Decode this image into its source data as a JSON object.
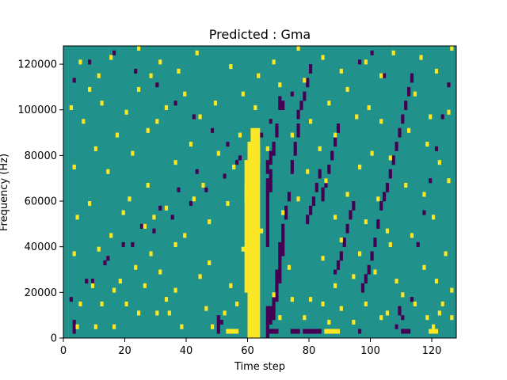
{
  "chart_data": {
    "type": "heatmap",
    "title": "Predicted : Gma",
    "xlabel": "Time step",
    "ylabel": "Frequency (Hz)",
    "xlim": [
      0,
      128
    ],
    "ylim": [
      0,
      128000
    ],
    "x_ticks": [
      0,
      20,
      40,
      60,
      80,
      100,
      120
    ],
    "x_tick_labels": [
      "0",
      "20",
      "40",
      "60",
      "80",
      "100",
      "120"
    ],
    "y_ticks": [
      0,
      20000,
      40000,
      60000,
      80000,
      100000,
      120000
    ],
    "y_tick_labels": [
      "0",
      "20000",
      "40000",
      "60000",
      "80000",
      "100000",
      "120000"
    ],
    "rows": 64,
    "cols": 128,
    "colormap": "viridis",
    "colors": {
      "low": "#440154",
      "mid": "#21918c",
      "high": "#fde725"
    },
    "grid": false,
    "background_value": 0,
    "high_cells": [
      [
        60,
        0,
        42
      ],
      [
        61,
        0,
        42
      ],
      [
        62,
        0,
        42
      ],
      [
        63,
        0,
        45
      ],
      [
        59,
        10,
        38
      ],
      [
        61,
        43,
        45
      ],
      [
        62,
        43,
        45
      ],
      [
        60,
        20,
        30
      ],
      [
        59,
        30,
        32
      ],
      [
        53,
        1,
        1
      ],
      [
        54,
        1,
        1
      ],
      [
        55,
        1,
        1
      ],
      [
        56,
        1,
        1
      ],
      [
        85,
        1,
        1
      ],
      [
        86,
        1,
        1
      ],
      [
        87,
        1,
        1
      ],
      [
        88,
        1,
        1
      ],
      [
        89,
        1,
        1
      ],
      [
        119,
        1,
        1
      ],
      [
        120,
        1,
        1
      ],
      [
        121,
        1,
        1
      ],
      [
        120,
        2,
        2
      ],
      [
        4,
        2,
        2
      ],
      [
        10,
        2,
        2
      ],
      [
        16,
        2,
        2
      ],
      [
        38,
        2,
        2
      ],
      [
        48,
        2,
        2
      ],
      [
        86,
        3,
        3
      ],
      [
        94,
        3,
        3
      ],
      [
        70,
        4,
        4
      ],
      [
        78,
        4,
        4
      ],
      [
        103,
        4,
        4
      ],
      [
        105,
        5,
        5
      ],
      [
        118,
        4,
        4
      ],
      [
        122,
        5,
        5
      ],
      [
        126,
        4,
        4
      ],
      [
        24,
        5,
        5
      ],
      [
        30,
        5,
        5
      ],
      [
        34,
        5,
        5
      ],
      [
        46,
        6,
        6
      ],
      [
        52,
        5,
        5
      ],
      [
        5,
        7,
        7
      ],
      [
        12,
        7,
        7
      ],
      [
        20,
        7,
        7
      ],
      [
        33,
        8,
        8
      ],
      [
        56,
        7,
        7
      ],
      [
        74,
        8,
        8
      ],
      [
        84,
        7,
        7
      ],
      [
        90,
        6,
        6
      ],
      [
        98,
        7,
        7
      ],
      [
        114,
        7,
        7
      ],
      [
        123,
        7,
        7
      ],
      [
        16,
        10,
        10
      ],
      [
        36,
        10,
        10
      ],
      [
        68,
        9,
        9
      ],
      [
        80,
        8,
        8
      ],
      [
        110,
        9,
        9
      ],
      [
        126,
        10,
        10
      ],
      [
        9,
        11,
        11
      ],
      [
        18,
        12,
        12
      ],
      [
        26,
        11,
        11
      ],
      [
        44,
        13,
        13
      ],
      [
        54,
        11,
        11
      ],
      [
        88,
        11,
        11
      ],
      [
        94,
        13,
        13
      ],
      [
        108,
        12,
        12
      ],
      [
        121,
        12,
        12
      ],
      [
        23,
        15,
        15
      ],
      [
        31,
        14,
        14
      ],
      [
        47,
        16,
        16
      ],
      [
        73,
        15,
        15
      ],
      [
        101,
        14,
        14
      ],
      [
        117,
        15,
        15
      ],
      [
        3,
        18,
        18
      ],
      [
        11,
        19,
        19
      ],
      [
        28,
        18,
        18
      ],
      [
        36,
        20,
        20
      ],
      [
        58,
        19,
        19
      ],
      [
        84,
        17,
        17
      ],
      [
        96,
        18,
        18
      ],
      [
        106,
        20,
        20
      ],
      [
        124,
        18,
        18
      ],
      [
        15,
        22,
        22
      ],
      [
        26,
        24,
        24
      ],
      [
        39,
        22,
        22
      ],
      [
        64,
        23,
        23
      ],
      [
        90,
        21,
        21
      ],
      [
        105,
        23,
        23
      ],
      [
        113,
        22,
        22
      ],
      [
        4,
        26,
        26
      ],
      [
        19,
        27,
        27
      ],
      [
        29,
        26,
        26
      ],
      [
        47,
        25,
        25
      ],
      [
        71,
        27,
        27
      ],
      [
        88,
        26,
        26
      ],
      [
        98,
        25,
        25
      ],
      [
        120,
        26,
        26
      ],
      [
        8,
        29,
        29
      ],
      [
        21,
        30,
        30
      ],
      [
        33,
        28,
        28
      ],
      [
        42,
        30,
        30
      ],
      [
        53,
        29,
        29
      ],
      [
        76,
        30,
        30
      ],
      [
        92,
        31,
        31
      ],
      [
        102,
        30,
        30
      ],
      [
        117,
        31,
        31
      ],
      [
        27,
        33,
        33
      ],
      [
        45,
        33,
        33
      ],
      [
        85,
        34,
        34
      ],
      [
        111,
        33,
        33
      ],
      [
        125,
        34,
        34
      ],
      [
        3,
        37,
        37
      ],
      [
        14,
        36,
        36
      ],
      [
        36,
        38,
        38
      ],
      [
        55,
        37,
        37
      ],
      [
        79,
        36,
        36
      ],
      [
        96,
        37,
        37
      ],
      [
        106,
        39,
        39
      ],
      [
        122,
        38,
        38
      ],
      [
        10,
        41,
        41
      ],
      [
        22,
        40,
        40
      ],
      [
        41,
        42,
        42
      ],
      [
        50,
        40,
        40
      ],
      [
        66,
        41,
        41
      ],
      [
        83,
        41,
        41
      ],
      [
        100,
        40,
        40
      ],
      [
        118,
        42,
        42
      ],
      [
        17,
        44,
        44
      ],
      [
        27,
        45,
        45
      ],
      [
        57,
        44,
        44
      ],
      [
        74,
        44,
        44
      ],
      [
        88,
        44,
        44
      ],
      [
        112,
        45,
        45
      ],
      [
        6,
        47,
        47
      ],
      [
        30,
        47,
        47
      ],
      [
        44,
        48,
        48
      ],
      [
        80,
        47,
        47
      ],
      [
        95,
        48,
        48
      ],
      [
        103,
        47,
        47
      ],
      [
        119,
        48,
        48
      ],
      [
        2,
        50,
        50
      ],
      [
        12,
        51,
        51
      ],
      [
        20,
        49,
        49
      ],
      [
        33,
        50,
        50
      ],
      [
        49,
        51,
        51
      ],
      [
        62,
        50,
        50
      ],
      [
        86,
        51,
        51
      ],
      [
        99,
        50,
        50
      ],
      [
        125,
        49,
        49
      ],
      [
        8,
        54,
        54
      ],
      [
        24,
        54,
        54
      ],
      [
        39,
        53,
        53
      ],
      [
        58,
        53,
        53
      ],
      [
        70,
        55,
        55
      ],
      [
        92,
        54,
        54
      ],
      [
        114,
        53,
        53
      ],
      [
        11,
        57,
        57
      ],
      [
        28,
        57,
        57
      ],
      [
        37,
        58,
        58
      ],
      [
        63,
        57,
        57
      ],
      [
        78,
        56,
        56
      ],
      [
        90,
        58,
        58
      ],
      [
        103,
        57,
        57
      ],
      [
        121,
        58,
        58
      ],
      [
        5,
        60,
        60
      ],
      [
        15,
        61,
        61
      ],
      [
        31,
        60,
        60
      ],
      [
        54,
        59,
        59
      ],
      [
        68,
        60,
        60
      ],
      [
        84,
        61,
        61
      ],
      [
        98,
        60,
        60
      ],
      [
        116,
        61,
        61
      ],
      [
        24,
        63,
        63
      ],
      [
        43,
        62,
        62
      ],
      [
        76,
        63,
        63
      ],
      [
        107,
        62,
        62
      ],
      [
        126,
        63,
        63
      ],
      [
        62,
        36,
        42
      ],
      [
        63,
        38,
        41
      ],
      [
        61,
        36,
        39
      ]
    ],
    "low_cells": [
      [
        67,
        1,
        1
      ],
      [
        68,
        1,
        1
      ],
      [
        69,
        1,
        1
      ],
      [
        74,
        1,
        1
      ],
      [
        75,
        1,
        1
      ],
      [
        76,
        1,
        1
      ],
      [
        78,
        1,
        1
      ],
      [
        79,
        1,
        1
      ],
      [
        80,
        1,
        1
      ],
      [
        81,
        1,
        1
      ],
      [
        82,
        1,
        1
      ],
      [
        83,
        1,
        1
      ],
      [
        96,
        1,
        1
      ],
      [
        110,
        1,
        1
      ],
      [
        111,
        1,
        1
      ],
      [
        112,
        1,
        1
      ],
      [
        3,
        1,
        3
      ],
      [
        50,
        1,
        4
      ],
      [
        51,
        3,
        3
      ],
      [
        66,
        0,
        6
      ],
      [
        67,
        3,
        6
      ],
      [
        68,
        4,
        8
      ],
      [
        69,
        8,
        14
      ],
      [
        70,
        12,
        20
      ],
      [
        71,
        18,
        24
      ],
      [
        72,
        26,
        28
      ],
      [
        66,
        20,
        34
      ],
      [
        67,
        32,
        36
      ],
      [
        73,
        30,
        31
      ],
      [
        74,
        36,
        38
      ],
      [
        75,
        40,
        42
      ],
      [
        76,
        44,
        46
      ],
      [
        66,
        36,
        38
      ],
      [
        67,
        38,
        40
      ],
      [
        68,
        40,
        42
      ],
      [
        69,
        44,
        46
      ],
      [
        70,
        50,
        52
      ],
      [
        108,
        2,
        2
      ],
      [
        109,
        5,
        6
      ],
      [
        110,
        4,
        4
      ],
      [
        113,
        8,
        8
      ],
      [
        97,
        10,
        11
      ],
      [
        98,
        12,
        13
      ],
      [
        99,
        14,
        15
      ],
      [
        100,
        17,
        18
      ],
      [
        101,
        20,
        21
      ],
      [
        102,
        24,
        25
      ],
      [
        103,
        28,
        29
      ],
      [
        104,
        30,
        31
      ],
      [
        105,
        32,
        33
      ],
      [
        106,
        35,
        36
      ],
      [
        107,
        38,
        39
      ],
      [
        108,
        41,
        42
      ],
      [
        109,
        44,
        45
      ],
      [
        110,
        47,
        48
      ],
      [
        111,
        50,
        51
      ],
      [
        112,
        53,
        54
      ],
      [
        113,
        56,
        57
      ],
      [
        88,
        14,
        14
      ],
      [
        89,
        15,
        16
      ],
      [
        90,
        17,
        18
      ],
      [
        91,
        20,
        21
      ],
      [
        92,
        23,
        24
      ],
      [
        93,
        26,
        27
      ],
      [
        94,
        28,
        29
      ],
      [
        84,
        30,
        32
      ],
      [
        85,
        33,
        34
      ],
      [
        86,
        36,
        37
      ],
      [
        87,
        39,
        40
      ],
      [
        88,
        42,
        43
      ],
      [
        89,
        45,
        46
      ],
      [
        79,
        25,
        26
      ],
      [
        80,
        27,
        28
      ],
      [
        81,
        29,
        30
      ],
      [
        82,
        32,
        33
      ],
      [
        83,
        35,
        36
      ],
      [
        76,
        48,
        49
      ],
      [
        77,
        50,
        51
      ],
      [
        78,
        52,
        53
      ],
      [
        79,
        55,
        56
      ],
      [
        80,
        58,
        59
      ],
      [
        2,
        8,
        8
      ],
      [
        9,
        12,
        12
      ],
      [
        14,
        17,
        17
      ],
      [
        22,
        20,
        20
      ],
      [
        29,
        23,
        23
      ],
      [
        35,
        26,
        26
      ],
      [
        41,
        29,
        29
      ],
      [
        46,
        32,
        32
      ],
      [
        52,
        35,
        35
      ],
      [
        56,
        38,
        38
      ],
      [
        61,
        41,
        41
      ],
      [
        64,
        44,
        44
      ],
      [
        67,
        47,
        47
      ],
      [
        71,
        50,
        51
      ],
      [
        74,
        53,
        53
      ],
      [
        3,
        56,
        56
      ],
      [
        8,
        60,
        60
      ],
      [
        16,
        62,
        62
      ],
      [
        23,
        58,
        58
      ],
      [
        30,
        55,
        55
      ],
      [
        36,
        51,
        51
      ],
      [
        42,
        48,
        48
      ],
      [
        48,
        45,
        45
      ],
      [
        53,
        42,
        42
      ],
      [
        57,
        39,
        39
      ],
      [
        43,
        36,
        36
      ],
      [
        37,
        32,
        32
      ],
      [
        31,
        28,
        28
      ],
      [
        25,
        24,
        24
      ],
      [
        19,
        20,
        20
      ],
      [
        13,
        16,
        16
      ],
      [
        7,
        12,
        12
      ],
      [
        115,
        20,
        20
      ],
      [
        117,
        27,
        27
      ],
      [
        119,
        34,
        34
      ],
      [
        121,
        41,
        41
      ],
      [
        123,
        48,
        48
      ],
      [
        125,
        55,
        55
      ],
      [
        96,
        60,
        60
      ],
      [
        100,
        62,
        62
      ],
      [
        104,
        57,
        57
      ]
    ]
  }
}
